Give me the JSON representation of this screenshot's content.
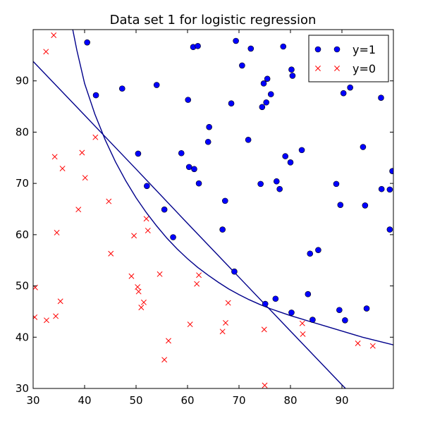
{
  "chart_data": {
    "type": "scatter",
    "title": "Data set 1 for logistic regression",
    "xlim": [
      30,
      100
    ],
    "ylim": [
      30,
      100
    ],
    "x_ticks": [
      30,
      40,
      50,
      60,
      70,
      80,
      90
    ],
    "y_ticks": [
      30,
      40,
      50,
      60,
      70,
      80,
      90
    ],
    "grid": false,
    "legend": {
      "placement": "top-right",
      "entries": [
        "y=1",
        "y=0"
      ]
    },
    "colors": {
      "positive": "#0000ff",
      "negative": "#ff0000",
      "boundary": "#00008b"
    },
    "series": [
      {
        "name": "y=1",
        "marker": "circle",
        "points": [
          [
            40.5,
            97.5
          ],
          [
            42.2,
            87.2
          ],
          [
            47.3,
            88.5
          ],
          [
            50.4,
            75.8
          ],
          [
            52.1,
            69.5
          ],
          [
            54.0,
            89.2
          ],
          [
            55.5,
            64.9
          ],
          [
            57.2,
            59.5
          ],
          [
            58.8,
            75.9
          ],
          [
            60.1,
            86.3
          ],
          [
            60.3,
            73.2
          ],
          [
            61.1,
            96.6
          ],
          [
            61.3,
            72.8
          ],
          [
            62.0,
            96.8
          ],
          [
            62.2,
            70.0
          ],
          [
            64.0,
            78.1
          ],
          [
            64.2,
            81.0
          ],
          [
            66.8,
            61.0
          ],
          [
            67.3,
            66.6
          ],
          [
            68.5,
            85.6
          ],
          [
            69.1,
            52.8
          ],
          [
            69.4,
            97.8
          ],
          [
            70.6,
            93.0
          ],
          [
            71.8,
            78.5
          ],
          [
            72.3,
            96.3
          ],
          [
            74.2,
            69.9
          ],
          [
            74.5,
            84.9
          ],
          [
            74.8,
            89.5
          ],
          [
            75.1,
            46.5
          ],
          [
            75.3,
            85.8
          ],
          [
            75.5,
            90.4
          ],
          [
            76.2,
            87.4
          ],
          [
            77.1,
            47.5
          ],
          [
            77.3,
            70.4
          ],
          [
            77.9,
            68.9
          ],
          [
            78.6,
            96.7
          ],
          [
            79.0,
            75.3
          ],
          [
            80.0,
            74.1
          ],
          [
            80.2,
            44.8
          ],
          [
            80.2,
            92.2
          ],
          [
            80.4,
            91.0
          ],
          [
            82.2,
            76.5
          ],
          [
            83.4,
            48.4
          ],
          [
            83.8,
            56.3
          ],
          [
            84.3,
            43.4
          ],
          [
            85.4,
            57.0
          ],
          [
            88.9,
            69.9
          ],
          [
            89.5,
            45.3
          ],
          [
            89.7,
            65.8
          ],
          [
            90.3,
            87.6
          ],
          [
            90.6,
            43.3
          ],
          [
            91.6,
            88.7
          ],
          [
            94.1,
            77.1
          ],
          [
            94.5,
            65.7
          ],
          [
            94.8,
            45.6
          ],
          [
            97.6,
            86.7
          ],
          [
            97.7,
            68.9
          ],
          [
            99.3,
            68.8
          ],
          [
            99.3,
            61.0
          ],
          [
            99.8,
            72.4
          ]
        ]
      },
      {
        "name": "y=0",
        "marker": "x",
        "points": [
          [
            30.3,
            43.9
          ],
          [
            30.4,
            49.7
          ],
          [
            32.5,
            95.7
          ],
          [
            32.6,
            43.3
          ],
          [
            34.0,
            98.9
          ],
          [
            34.2,
            75.2
          ],
          [
            34.4,
            44.1
          ],
          [
            34.6,
            60.4
          ],
          [
            35.3,
            47.0
          ],
          [
            35.7,
            72.9
          ],
          [
            38.8,
            64.9
          ],
          [
            39.5,
            76.0
          ],
          [
            40.1,
            71.1
          ],
          [
            42.1,
            79.0
          ],
          [
            44.7,
            66.5
          ],
          [
            45.1,
            56.3
          ],
          [
            49.1,
            51.9
          ],
          [
            49.6,
            59.8
          ],
          [
            50.3,
            49.8
          ],
          [
            50.5,
            48.9
          ],
          [
            51.0,
            45.8
          ],
          [
            51.5,
            46.8
          ],
          [
            52.0,
            63.1
          ],
          [
            52.3,
            60.8
          ],
          [
            54.6,
            52.3
          ],
          [
            55.5,
            35.6
          ],
          [
            56.3,
            39.3
          ],
          [
            60.5,
            42.5
          ],
          [
            61.8,
            50.4
          ],
          [
            62.2,
            52.1
          ],
          [
            66.8,
            41.1
          ],
          [
            67.4,
            42.8
          ],
          [
            67.9,
            46.7
          ],
          [
            74.9,
            41.5
          ],
          [
            75.0,
            30.6
          ],
          [
            82.3,
            42.7
          ],
          [
            82.4,
            40.6
          ],
          [
            93.1,
            38.8
          ],
          [
            96.0,
            38.3
          ]
        ]
      }
    ],
    "curves": [
      {
        "name": "linear boundary",
        "points": [
          [
            30,
            93.8
          ],
          [
            40,
            83.3
          ],
          [
            50,
            72.8
          ],
          [
            60,
            62.2
          ],
          [
            70,
            51.7
          ],
          [
            80,
            41.2
          ],
          [
            90,
            30.7
          ],
          [
            90.7,
            30.0
          ]
        ]
      },
      {
        "name": "nonlinear boundary",
        "points": [
          [
            37.7,
            100
          ],
          [
            38.5,
            96.0
          ],
          [
            40,
            89.5
          ],
          [
            42,
            83.5
          ],
          [
            44,
            78.5
          ],
          [
            46,
            74.2
          ],
          [
            48,
            70.5
          ],
          [
            50,
            67.2
          ],
          [
            52,
            64.3
          ],
          [
            54,
            61.7
          ],
          [
            56,
            59.3
          ],
          [
            58,
            57.2
          ],
          [
            60,
            55.3
          ],
          [
            62,
            53.6
          ],
          [
            64,
            52.1
          ],
          [
            66,
            50.7
          ],
          [
            68,
            49.4
          ],
          [
            70,
            48.3
          ],
          [
            72,
            47.3
          ],
          [
            74,
            46.4
          ],
          [
            76,
            45.6
          ],
          [
            78,
            44.9
          ],
          [
            80,
            44.2
          ],
          [
            82,
            43.6
          ],
          [
            84,
            43.0
          ],
          [
            86,
            42.4
          ],
          [
            88,
            41.8
          ],
          [
            90,
            41.2
          ],
          [
            92,
            40.6
          ],
          [
            94,
            40.0
          ],
          [
            96,
            39.5
          ],
          [
            98,
            39.0
          ],
          [
            100,
            38.5
          ]
        ]
      }
    ]
  }
}
